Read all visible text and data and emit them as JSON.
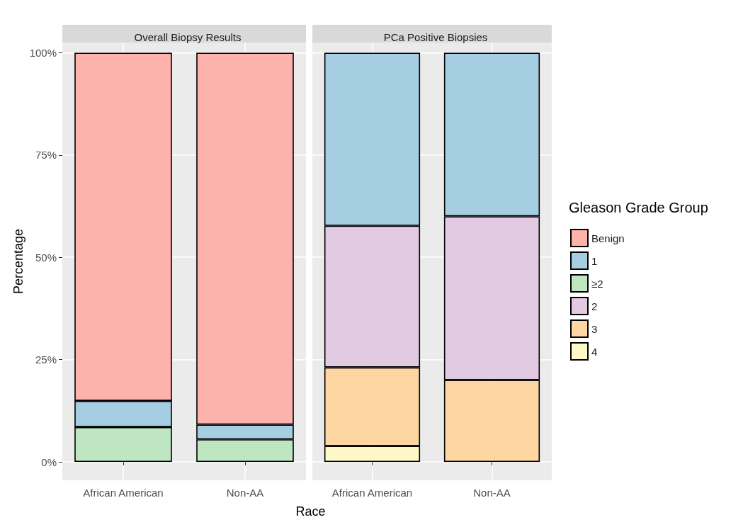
{
  "chart_data": [
    {
      "type": "bar",
      "title": "Overall Biopsy Results",
      "xlabel": "Race",
      "ylabel": "Percentage",
      "legend_title": "Gleason Grade Group",
      "categories": [
        "African American",
        "Non-AA"
      ],
      "stacked": true,
      "series": [
        {
          "name": "≥2",
          "color": "#bde6c1",
          "values": [
            8.5,
            5.5
          ]
        },
        {
          "name": "1",
          "color": "#a6cee3",
          "values": [
            6.4,
            3.6
          ]
        },
        {
          "name": "Benign",
          "color": "#fdb3ab",
          "values": [
            85.1,
            90.9
          ]
        }
      ],
      "ylim": [
        -4.5,
        102.5
      ],
      "yticks": [
        {
          "value": 0,
          "label": "0%"
        },
        {
          "value": 25,
          "label": "25%"
        },
        {
          "value": 50,
          "label": "50%"
        },
        {
          "value": 75,
          "label": "75%"
        },
        {
          "value": 100,
          "label": "100%"
        }
      ],
      "grid": true,
      "legend": "right"
    },
    {
      "type": "bar",
      "title": "PCa Positive Biopsies",
      "categories": [
        "African American",
        "Non-AA"
      ],
      "stacked": true,
      "series": [
        {
          "name": "4",
          "color": "#fef8c6",
          "values": [
            3.9,
            null
          ]
        },
        {
          "name": "3",
          "color": "#fdd6a2",
          "values": [
            19.2,
            20.0
          ]
        },
        {
          "name": "2",
          "color": "#e2cae2",
          "values": [
            34.6,
            40.0
          ]
        },
        {
          "name": "1",
          "color": "#a6cee3",
          "values": [
            42.3,
            40.0
          ]
        }
      ],
      "ylim": [
        -4.5,
        102.5
      ],
      "yticks": [
        0,
        25,
        50,
        75,
        100
      ],
      "grid": true,
      "legend": "right",
      "tick_labels": "x"
    }
  ]
}
